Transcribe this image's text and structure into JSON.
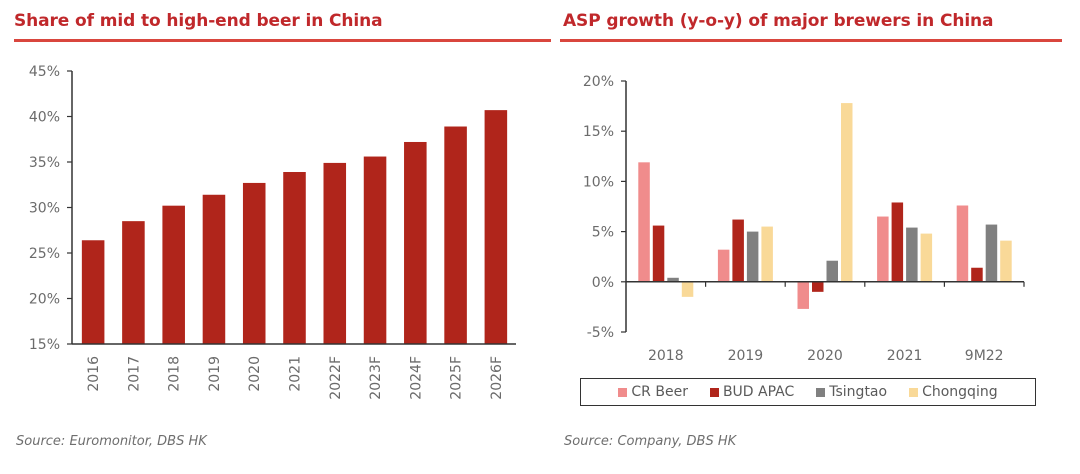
{
  "chart_data": [
    {
      "type": "bar",
      "title": "Share of mid to high-end beer in China",
      "xlabel": "",
      "ylabel": "",
      "categories": [
        "2016",
        "2017",
        "2018",
        "2019",
        "2020",
        "2021",
        "2022F",
        "2023F",
        "2024F",
        "2025F",
        "2026F"
      ],
      "values": [
        26.4,
        28.5,
        30.2,
        31.4,
        32.7,
        33.9,
        34.9,
        35.6,
        37.2,
        38.9,
        40.7
      ],
      "unit": "%",
      "ylim": [
        15,
        45
      ],
      "yticks": [
        "15%",
        "20%",
        "25%",
        "30%",
        "35%",
        "40%",
        "45%"
      ],
      "ytick_values": [
        15,
        20,
        25,
        30,
        35,
        40,
        45
      ],
      "grid": false,
      "bar_color": "#b0251b",
      "xtick_rotation": "vertical",
      "source": "Source: Euromonitor, DBS HK"
    },
    {
      "type": "bar",
      "title": "ASP growth (y-o-y) of major brewers in China",
      "xlabel": "",
      "ylabel": "",
      "categories": [
        "2018",
        "2019",
        "2020",
        "2021",
        "9M22"
      ],
      "series": [
        {
          "name": "CR Beer",
          "color": "#f08c8c",
          "values": [
            11.9,
            3.2,
            -2.7,
            6.5,
            7.6
          ]
        },
        {
          "name": "BUD APAC",
          "color": "#b0251b",
          "values": [
            5.6,
            6.2,
            -1.0,
            7.9,
            1.4
          ]
        },
        {
          "name": "Tsingtao",
          "color": "#808080",
          "values": [
            0.4,
            5.0,
            2.1,
            5.4,
            5.7
          ]
        },
        {
          "name": "Chongqing",
          "color": "#f9d998",
          "values": [
            -1.5,
            5.5,
            17.8,
            4.8,
            4.1
          ]
        }
      ],
      "unit": "%",
      "ylim": [
        -5,
        20
      ],
      "yticks": [
        "-5%",
        "0%",
        "5%",
        "10%",
        "15%",
        "20%"
      ],
      "ytick_values": [
        -5,
        0,
        5,
        10,
        15,
        20
      ],
      "grid": false,
      "legend": "bottom",
      "source": "Source: Company, DBS HK"
    }
  ],
  "accent_color": "#c0282b"
}
